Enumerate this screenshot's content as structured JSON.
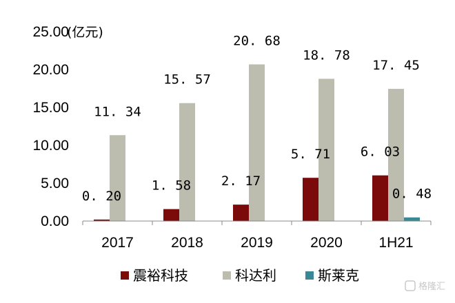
{
  "chart_data": {
    "type": "bar",
    "unit_label": "(亿元)",
    "categories": [
      "2017",
      "2018",
      "2019",
      "2020",
      "1H21"
    ],
    "series": [
      {
        "name": "震裕科技",
        "color": "#7b0a0a",
        "values": [
          0.2,
          1.58,
          2.17,
          5.71,
          6.03
        ]
      },
      {
        "name": "科达利",
        "color": "#bcbcaf",
        "values": [
          11.34,
          15.57,
          20.68,
          18.78,
          17.45
        ]
      },
      {
        "name": "斯莱克",
        "color": "#3a8795",
        "values": [
          null,
          null,
          null,
          null,
          0.48
        ]
      }
    ],
    "ylim": [
      0,
      25
    ],
    "yticks": [
      "0.00",
      "5.00",
      "10.00",
      "15.00",
      "20.00",
      "25.00"
    ],
    "data_labels": [
      {
        "series": 0,
        "index": 0,
        "text": "0. 20"
      },
      {
        "series": 0,
        "index": 1,
        "text": "1. 58"
      },
      {
        "series": 0,
        "index": 2,
        "text": "2. 17"
      },
      {
        "series": 0,
        "index": 3,
        "text": "5. 71"
      },
      {
        "series": 0,
        "index": 4,
        "text": "6. 03"
      },
      {
        "series": 1,
        "index": 0,
        "text": "11. 34"
      },
      {
        "series": 1,
        "index": 1,
        "text": "15. 57"
      },
      {
        "series": 1,
        "index": 2,
        "text": "20. 68"
      },
      {
        "series": 1,
        "index": 3,
        "text": "18. 78"
      },
      {
        "series": 1,
        "index": 4,
        "text": "17. 45"
      },
      {
        "series": 2,
        "index": 4,
        "text": "0. 48"
      }
    ],
    "legend_position": "bottom",
    "grid": false
  },
  "watermark": {
    "text": "格隆汇"
  }
}
